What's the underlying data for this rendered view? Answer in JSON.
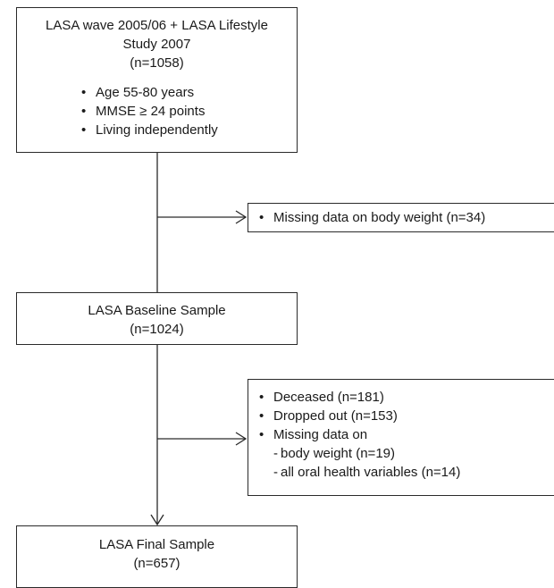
{
  "start_box": {
    "title_line1": "LASA wave 2005/06 + LASA Lifestyle",
    "title_line2": "Study 2007",
    "count": "(n=1058)",
    "criteria": [
      "Age 55-80 years",
      "MMSE ≥ 24 points",
      "Living independently"
    ]
  },
  "exclusion_1": {
    "items": [
      "Missing data on body weight (n=34)"
    ]
  },
  "baseline_box": {
    "title": "LASA Baseline Sample",
    "count": "(n=1024)"
  },
  "exclusion_2": {
    "items": [
      "Deceased (n=181)",
      "Dropped out (n=153)",
      "Missing data on"
    ],
    "subitems": [
      "body weight (n=19)",
      "all oral health variables (n=14)"
    ]
  },
  "final_box": {
    "title": "LASA Final Sample",
    "count": "(n=657)"
  }
}
